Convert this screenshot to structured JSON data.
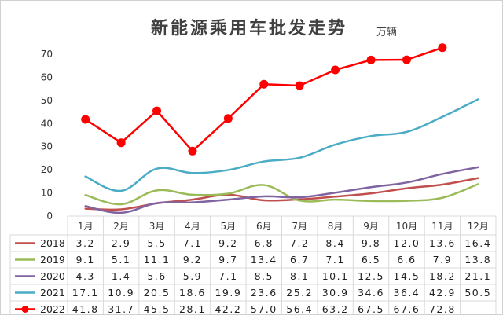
{
  "chart_data": {
    "type": "line",
    "title": "新能源乘用车批发走势",
    "unit": "万辆",
    "categories": [
      "1月",
      "2月",
      "3月",
      "4月",
      "5月",
      "6月",
      "7月",
      "8月",
      "9月",
      "10月",
      "11月",
      "12月"
    ],
    "ylim": [
      0,
      70
    ],
    "yticks": [
      0,
      10,
      20,
      30,
      40,
      50,
      60,
      70
    ],
    "grid": false,
    "legend": "data-table",
    "series": [
      {
        "name": "2018",
        "color": "#c0504d",
        "marker": "none",
        "values": [
          3.2,
          2.9,
          5.5,
          7.1,
          9.2,
          6.8,
          7.2,
          8.4,
          9.8,
          12.0,
          13.6,
          16.4
        ],
        "labels": [
          "3.2",
          "2.9",
          "5.5",
          "7.1",
          "9.2",
          "6.8",
          "7.2",
          "8.4",
          "9.8",
          "12.0",
          "13.6",
          "16.4"
        ]
      },
      {
        "name": "2019",
        "color": "#9bbb59",
        "marker": "none",
        "values": [
          9.1,
          5.1,
          11.1,
          9.2,
          9.7,
          13.4,
          6.7,
          7.1,
          6.5,
          6.6,
          7.9,
          13.8
        ],
        "labels": [
          "9.1",
          "5.1",
          "11.1",
          "9.2",
          "9.7",
          "13.4",
          "6.7",
          "7.1",
          "6.5",
          "6.6",
          "7.9",
          "13.8"
        ]
      },
      {
        "name": "2020",
        "color": "#8064a2",
        "marker": "none",
        "values": [
          4.3,
          1.4,
          5.6,
          5.9,
          7.1,
          8.5,
          8.1,
          10.1,
          12.5,
          14.5,
          18.2,
          21.1
        ],
        "labels": [
          "4.3",
          "1.4",
          "5.6",
          "5.9",
          "7.1",
          "8.5",
          "8.1",
          "10.1",
          "12.5",
          "14.5",
          "18.2",
          "21.1"
        ]
      },
      {
        "name": "2021",
        "color": "#4bacc6",
        "marker": "none",
        "values": [
          17.1,
          10.9,
          20.5,
          18.6,
          19.9,
          23.6,
          25.2,
          30.9,
          34.6,
          36.4,
          42.9,
          50.5
        ],
        "labels": [
          "17.1",
          "10.9",
          "20.5",
          "18.6",
          "19.9",
          "23.6",
          "25.2",
          "30.9",
          "34.6",
          "36.4",
          "42.9",
          "50.5"
        ]
      },
      {
        "name": "2022",
        "color": "#ff0000",
        "marker": "circle",
        "values": [
          41.8,
          31.7,
          45.5,
          28.1,
          42.2,
          57.0,
          56.4,
          63.2,
          67.5,
          67.6,
          72.8,
          null
        ],
        "labels": [
          "41.8",
          "31.7",
          "45.5",
          "28.1",
          "42.2",
          "57.0",
          "56.4",
          "63.2",
          "67.5",
          "67.6",
          "72.8",
          ""
        ]
      }
    ]
  }
}
